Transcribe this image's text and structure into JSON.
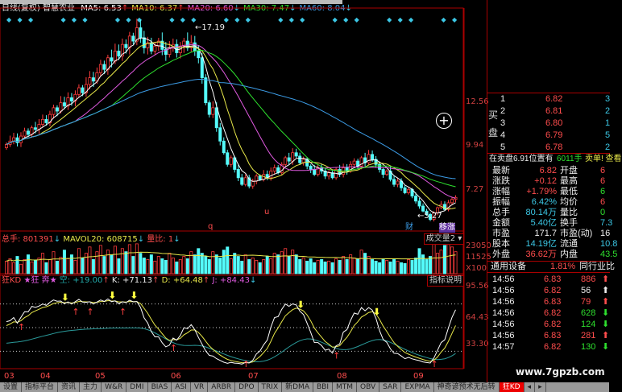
{
  "window": {
    "title_view": "日线(复权)",
    "stock_name": "智慧农业"
  },
  "ma_legend": [
    {
      "label": "MA5: 6.53",
      "arrow": "↑",
      "color": "#ffffff",
      "arrow_color": "#ff4040"
    },
    {
      "label": "MA10: 6.37",
      "arrow": "↑",
      "color": "#e8e84a",
      "arrow_color": "#ff4040"
    },
    {
      "label": "MA20: 6.60",
      "arrow": "↓",
      "color": "#e05ae0",
      "arrow_color": "#3cc8e6"
    },
    {
      "label": "MA30: 7.47",
      "arrow": "↓",
      "color": "#2ee02e",
      "arrow_color": "#3cc8e6"
    },
    {
      "label": "MA60: 8.04",
      "arrow": "↓",
      "color": "#3c9ce6",
      "arrow_color": "#3cc8e6"
    }
  ],
  "price_axis": [
    "12.56",
    "9.94",
    "7.27"
  ],
  "annotations": {
    "high": "17.19",
    "low": "5.27",
    "marker_q": "q",
    "marker_u": "u",
    "badge_cai": "财",
    "badge_yi": "移涨"
  },
  "volume": {
    "header": {
      "total": "总手: 801391",
      "total_arrow": "↓",
      "mavol": "MAVOL20: 608715",
      "mavol_arrow": "↓",
      "ratio": "量比: 1",
      "ratio_arrow": "↓"
    },
    "selector": "成交量2",
    "axis": [
      "23050",
      "11525",
      "X100"
    ]
  },
  "kd": {
    "header": {
      "name": "狂KD",
      "stars": "★狂 奔★",
      "kong": "空: +19.00",
      "k": "K: +71.13",
      "d": "D: +64.48",
      "j": "J: +84.43"
    },
    "explain_button": "指标说明",
    "axis": [
      "95.56",
      "64.43",
      "33.30"
    ]
  },
  "months": [
    "03",
    "04",
    "05",
    "06",
    "07",
    "08",
    "09"
  ],
  "chart_data": {
    "type": "candlestick",
    "closes": [
      10.0,
      10.2,
      10.4,
      10.1,
      10.5,
      10.8,
      10.6,
      11.0,
      10.9,
      11.2,
      11.5,
      11.3,
      11.8,
      12.2,
      12.0,
      12.5,
      12.3,
      12.8,
      12.6,
      13.0,
      13.4,
      13.1,
      13.6,
      14.0,
      13.8,
      14.3,
      14.8,
      14.5,
      15.2,
      15.0,
      15.6,
      15.3,
      16.0,
      15.8,
      16.5,
      16.2,
      17.0,
      16.4,
      15.8,
      16.1,
      15.6,
      15.9,
      16.2,
      15.7,
      15.4,
      15.8,
      16.0,
      15.5,
      15.9,
      16.2,
      15.8,
      16.1,
      15.6,
      15.2,
      14.0,
      12.5,
      11.8,
      12.2,
      11.0,
      10.2,
      9.5,
      8.8,
      9.2,
      8.5,
      8.0,
      7.6,
      8.0,
      7.5,
      7.8,
      8.1,
      7.9,
      8.2,
      8.0,
      8.4,
      8.6,
      8.3,
      8.8,
      9.2,
      9.0,
      9.5,
      9.3,
      8.9,
      9.1,
      8.7,
      8.5,
      8.2,
      8.6,
      8.4,
      8.1,
      8.3,
      8.0,
      8.5,
      8.2,
      8.6,
      8.4,
      8.8,
      9.0,
      8.7,
      9.2,
      8.9,
      9.4,
      9.1,
      8.8,
      8.5,
      8.2,
      8.4,
      7.9,
      7.6,
      7.8,
      7.4,
      7.1,
      7.3,
      6.9,
      6.6,
      6.3,
      6.0,
      5.8,
      5.5,
      5.9,
      6.2,
      6.4,
      6.1,
      6.5,
      6.7,
      6.82
    ],
    "volumes": [
      80,
      95,
      70,
      110,
      60,
      90,
      120,
      75,
      85,
      100,
      130,
      70,
      90,
      140,
      80,
      105,
      150,
      95,
      120,
      85,
      160,
      100,
      130,
      170,
      90,
      140,
      180,
      110,
      150,
      120,
      175,
      95,
      160,
      140,
      185,
      110,
      190,
      130,
      100,
      90,
      120,
      80,
      110,
      95,
      85,
      130,
      100,
      75,
      90,
      110,
      95,
      140,
      120,
      160,
      130,
      110,
      90,
      140,
      120,
      100,
      150,
      170,
      95,
      130,
      110,
      80,
      120,
      90,
      100,
      85,
      70,
      90,
      110,
      95,
      130,
      120,
      140,
      160,
      110,
      150,
      120,
      90,
      100,
      80,
      95,
      70,
      85,
      90,
      75,
      80,
      70,
      95,
      85,
      110,
      90,
      120,
      100,
      95,
      150,
      130,
      110,
      90,
      80,
      70,
      95,
      85,
      75,
      90,
      80,
      70,
      65,
      90,
      85,
      100,
      160,
      120,
      90,
      110,
      200,
      130,
      150,
      180,
      190,
      170,
      140
    ],
    "price_range": [
      4.9,
      17.7
    ],
    "volume_range": [
      0,
      230.5
    ]
  },
  "quote": {
    "buy_label": "买盘",
    "buy": [
      {
        "lvl": "1",
        "price": "6.82",
        "vol": "3"
      },
      {
        "lvl": "2",
        "price": "6.81",
        "vol": "2"
      },
      {
        "lvl": "3",
        "price": "6.80",
        "vol": "1"
      },
      {
        "lvl": "4",
        "price": "6.79",
        "vol": "5"
      },
      {
        "lvl": "5",
        "price": "6.78",
        "vol": "2"
      }
    ],
    "ask_notice": {
      "prefix": "在卖盘",
      "price": "6.91",
      "mid": "位置有",
      "qty": "6011手",
      "suffix": "卖单! 查看"
    },
    "stats": [
      {
        "l": "最新",
        "v": "6.82",
        "vc": "red",
        "l2": "开盘",
        "v2": "6",
        "v2c": "red"
      },
      {
        "l": "涨跌",
        "v": "+0.12",
        "vc": "red",
        "l2": "最高",
        "v2": "6",
        "v2c": "red"
      },
      {
        "l": "涨幅",
        "v": "+1.79%",
        "vc": "red",
        "l2": "最低",
        "v2": "6",
        "v2c": "grn"
      },
      {
        "l": "振幅",
        "v": "6.42%",
        "vc": "cy",
        "l2": "均价",
        "v2": "6",
        "v2c": "red"
      },
      {
        "l": "总手",
        "v": "80.14万",
        "vc": "cy",
        "l2": "量比",
        "v2": "0",
        "v2c": "grn"
      },
      {
        "l": "金额",
        "v": "5.40亿",
        "vc": "cy",
        "l2": "换手",
        "v2": "7.3",
        "v2c": "cy"
      },
      {
        "l": "市盈",
        "v": "171.7",
        "vc": "wh",
        "l2": "市盈(动)",
        "v2": "16",
        "v2c": "wh"
      },
      {
        "l": "股本",
        "v": "14.19亿",
        "vc": "cy",
        "l2": "流通",
        "v2": "10.8",
        "v2c": "cy"
      },
      {
        "l": "外盘",
        "v": "36.62万",
        "vc": "red",
        "l2": "内盘",
        "v2": "43.5",
        "v2c": "grn"
      }
    ],
    "industry": {
      "name": "通用设备",
      "pct": "1.81%",
      "compare": "同行业比"
    },
    "ticks": [
      {
        "t": "14:56",
        "p": "6.83",
        "v": "886",
        "dir": "up",
        "vc": "red"
      },
      {
        "t": "14:56",
        "p": "6.82",
        "v": "56",
        "dir": "up",
        "vc": "wh"
      },
      {
        "t": "14:56",
        "p": "6.83",
        "v": "79",
        "dir": "up",
        "vc": "red"
      },
      {
        "t": "14:56",
        "p": "6.82",
        "v": "628",
        "dir": "down",
        "vc": "grn"
      },
      {
        "t": "14:56",
        "p": "6.82",
        "v": "124",
        "dir": "down",
        "vc": "grn"
      },
      {
        "t": "14:56",
        "p": "6.83",
        "v": "281",
        "dir": "up",
        "vc": "red"
      },
      {
        "t": "14:57",
        "p": "6.82",
        "v": "130",
        "dir": "down",
        "vc": "grn"
      }
    ]
  },
  "watermark": "www.7gpzb.com",
  "tabs": [
    "设置",
    "指标平台",
    "资讯",
    "主力",
    "W&R",
    "DMI",
    "BIAS",
    "ASI",
    "VR",
    "ARBR",
    "DPO",
    "TRIX",
    "新DMA",
    "BBI",
    "MTM",
    "OBV",
    "SAR",
    "EXPMA",
    "神奇谚预术无后转",
    "狂KD"
  ],
  "active_tab": "狂KD"
}
